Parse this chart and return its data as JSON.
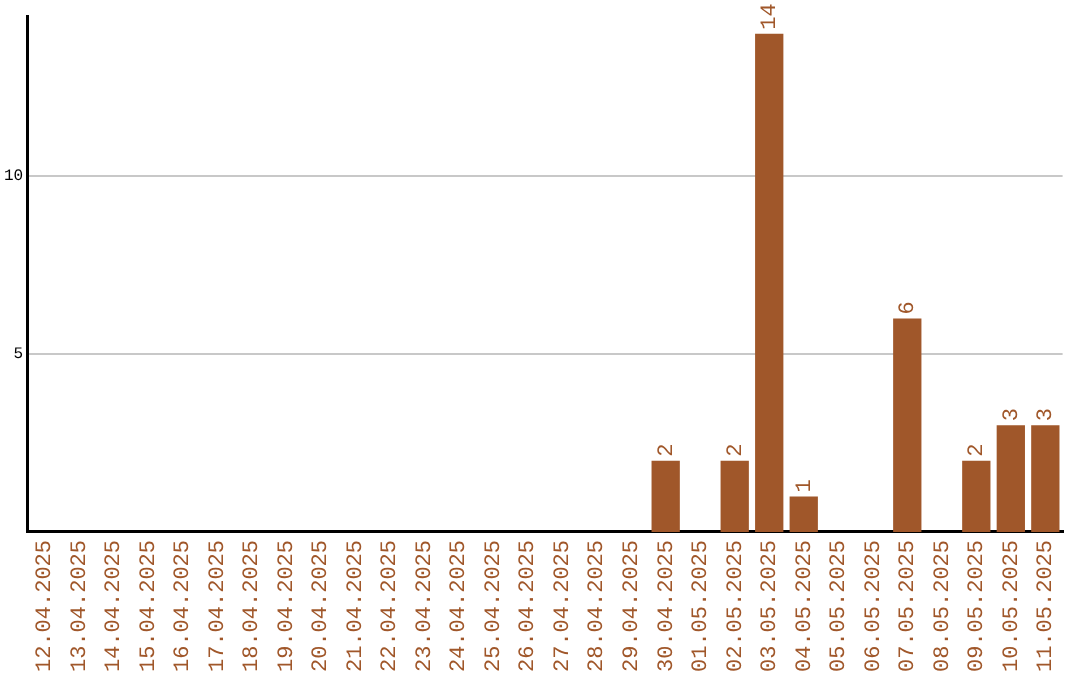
{
  "chart_data": {
    "type": "bar",
    "categories": [
      "12.04.2025",
      "13.04.2025",
      "14.04.2025",
      "15.04.2025",
      "16.04.2025",
      "17.04.2025",
      "18.04.2025",
      "19.04.2025",
      "20.04.2025",
      "21.04.2025",
      "22.04.2025",
      "23.04.2025",
      "24.04.2025",
      "25.04.2025",
      "26.04.2025",
      "27.04.2025",
      "28.04.2025",
      "29.04.2025",
      "30.04.2025",
      "01.05.2025",
      "02.05.2025",
      "03.05.2025",
      "04.05.2025",
      "05.05.2025",
      "06.05.2025",
      "07.05.2025",
      "08.05.2025",
      "09.05.2025",
      "10.05.2025",
      "11.05.2025"
    ],
    "values": [
      0,
      0,
      0,
      0,
      0,
      0,
      0,
      0,
      0,
      0,
      0,
      0,
      0,
      0,
      0,
      0,
      0,
      0,
      2,
      0,
      2,
      14,
      1,
      0,
      0,
      6,
      0,
      2,
      3,
      3
    ],
    "value_labels": [
      null,
      null,
      null,
      null,
      null,
      null,
      null,
      null,
      null,
      null,
      null,
      null,
      null,
      null,
      null,
      null,
      null,
      null,
      "2",
      null,
      "2",
      "14",
      "1",
      null,
      null,
      "6",
      null,
      "2",
      "3",
      "3"
    ],
    "color": "#a0572a",
    "ylim": [
      0,
      14.5
    ],
    "yticks": [
      5,
      10
    ],
    "grid": "y"
  }
}
